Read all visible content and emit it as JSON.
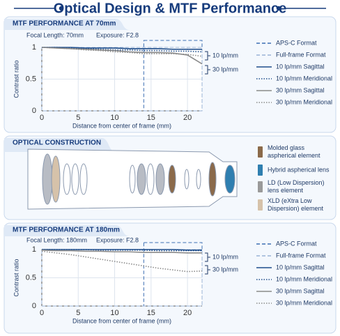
{
  "title": "Optical Design & MTF Performance",
  "chart_data": [
    {
      "type": "line",
      "title": "MTF PERFORMANCE AT 70mm",
      "focal_length": "Focal Length: 70mm",
      "exposure": "Exposure: F2.8",
      "xlabel": "Distance from center of frame (mm)",
      "ylabel": "Contrast ratio",
      "xlim": [
        0,
        22
      ],
      "xticks": [
        0,
        5,
        10,
        15,
        20
      ],
      "ylim": [
        0,
        1
      ],
      "yticks": [
        0,
        0.5,
        1
      ],
      "grid": true,
      "x": [
        0,
        2,
        4,
        6,
        8,
        10,
        12,
        14,
        16,
        18,
        20,
        22
      ],
      "regions": [
        {
          "name": "APS-C Format",
          "x": [
            14,
            22
          ]
        },
        {
          "name": "Full-frame Format",
          "x": [
            0,
            22
          ]
        }
      ],
      "series": [
        {
          "name": "10 lp/mm Sagittal",
          "color": "#1f4e8c",
          "style": "solid",
          "values": [
            1,
            1,
            1,
            0.99,
            0.99,
            0.99,
            0.98,
            0.98,
            0.98,
            0.97,
            0.97,
            0.97
          ]
        },
        {
          "name": "10 lp/mm Meridional",
          "color": "#1f4e8c",
          "style": "dotted",
          "values": [
            1,
            1,
            0.99,
            0.98,
            0.97,
            0.96,
            0.96,
            0.95,
            0.95,
            0.94,
            0.94,
            0.93
          ]
        },
        {
          "name": "30 lp/mm Sagittal",
          "color": "#8a8a8a",
          "style": "solid",
          "values": [
            1,
            0.99,
            0.98,
            0.97,
            0.96,
            0.95,
            0.93,
            0.92,
            0.92,
            0.91,
            0.88,
            0.74
          ]
        },
        {
          "name": "30 lp/mm Meridional",
          "color": "#8a8a8a",
          "style": "dotted",
          "values": [
            1,
            0.99,
            0.98,
            0.96,
            0.95,
            0.93,
            0.92,
            0.9,
            0.9,
            0.9,
            0.89,
            0.86
          ]
        }
      ],
      "annotations": [
        "10 lp/mm",
        "30 lp/mm"
      ]
    },
    {
      "type": "line",
      "title": "MTF PERFORMANCE AT 180mm",
      "focal_length": "Focal Length: 180mm",
      "exposure": "Exposure: F2.8",
      "xlabel": "Distance from center of frame (mm)",
      "ylabel": "Contrast ratio",
      "xlim": [
        0,
        22
      ],
      "xticks": [
        0,
        5,
        10,
        15,
        20
      ],
      "ylim": [
        0,
        1
      ],
      "yticks": [
        0,
        0.5,
        1
      ],
      "grid": true,
      "x": [
        0,
        2,
        4,
        6,
        8,
        10,
        12,
        14,
        16,
        18,
        20,
        22
      ],
      "regions": [
        {
          "name": "APS-C Format",
          "x": [
            14,
            22
          ]
        },
        {
          "name": "Full-frame Format",
          "x": [
            0,
            22
          ]
        }
      ],
      "series": [
        {
          "name": "10 lp/mm Sagittal",
          "color": "#1f4e8c",
          "style": "solid",
          "values": [
            1,
            1,
            1,
            1,
            1,
            1,
            1,
            1,
            1,
            1,
            0.99,
            0.99
          ]
        },
        {
          "name": "10 lp/mm Meridional",
          "color": "#1f4e8c",
          "style": "dotted",
          "values": [
            1,
            1,
            1,
            1,
            0.99,
            0.99,
            0.99,
            0.99,
            0.98,
            0.98,
            0.98,
            0.98
          ]
        },
        {
          "name": "30 lp/mm Sagittal",
          "color": "#8a8a8a",
          "style": "solid",
          "values": [
            0.99,
            0.98,
            0.98,
            0.97,
            0.97,
            0.96,
            0.96,
            0.95,
            0.95,
            0.95,
            0.94,
            0.94
          ]
        },
        {
          "name": "30 lp/mm Meridional",
          "color": "#8a8a8a",
          "style": "dotted",
          "values": [
            0.97,
            0.94,
            0.91,
            0.87,
            0.83,
            0.79,
            0.75,
            0.71,
            0.67,
            0.64,
            0.61,
            0.62
          ]
        }
      ],
      "annotations": [
        "10 lp/mm",
        "30 lp/mm"
      ]
    }
  ],
  "optical_construction": {
    "title": "OPTICAL CONSTRUCTION",
    "legend": [
      {
        "label": [
          "Molded glass",
          "aspherical element"
        ],
        "color": "#8b6a4a"
      },
      {
        "label": [
          "Hybrid aspherical lens"
        ],
        "color": "#2f7fb0"
      },
      {
        "label": [
          "LD (Low Dispersion)",
          "lens element"
        ],
        "color": "#9a9a9a"
      },
      {
        "label": [
          "XLD (eXtra Low",
          "Dispersion) element"
        ],
        "color": "#d6c2aa"
      }
    ]
  }
}
